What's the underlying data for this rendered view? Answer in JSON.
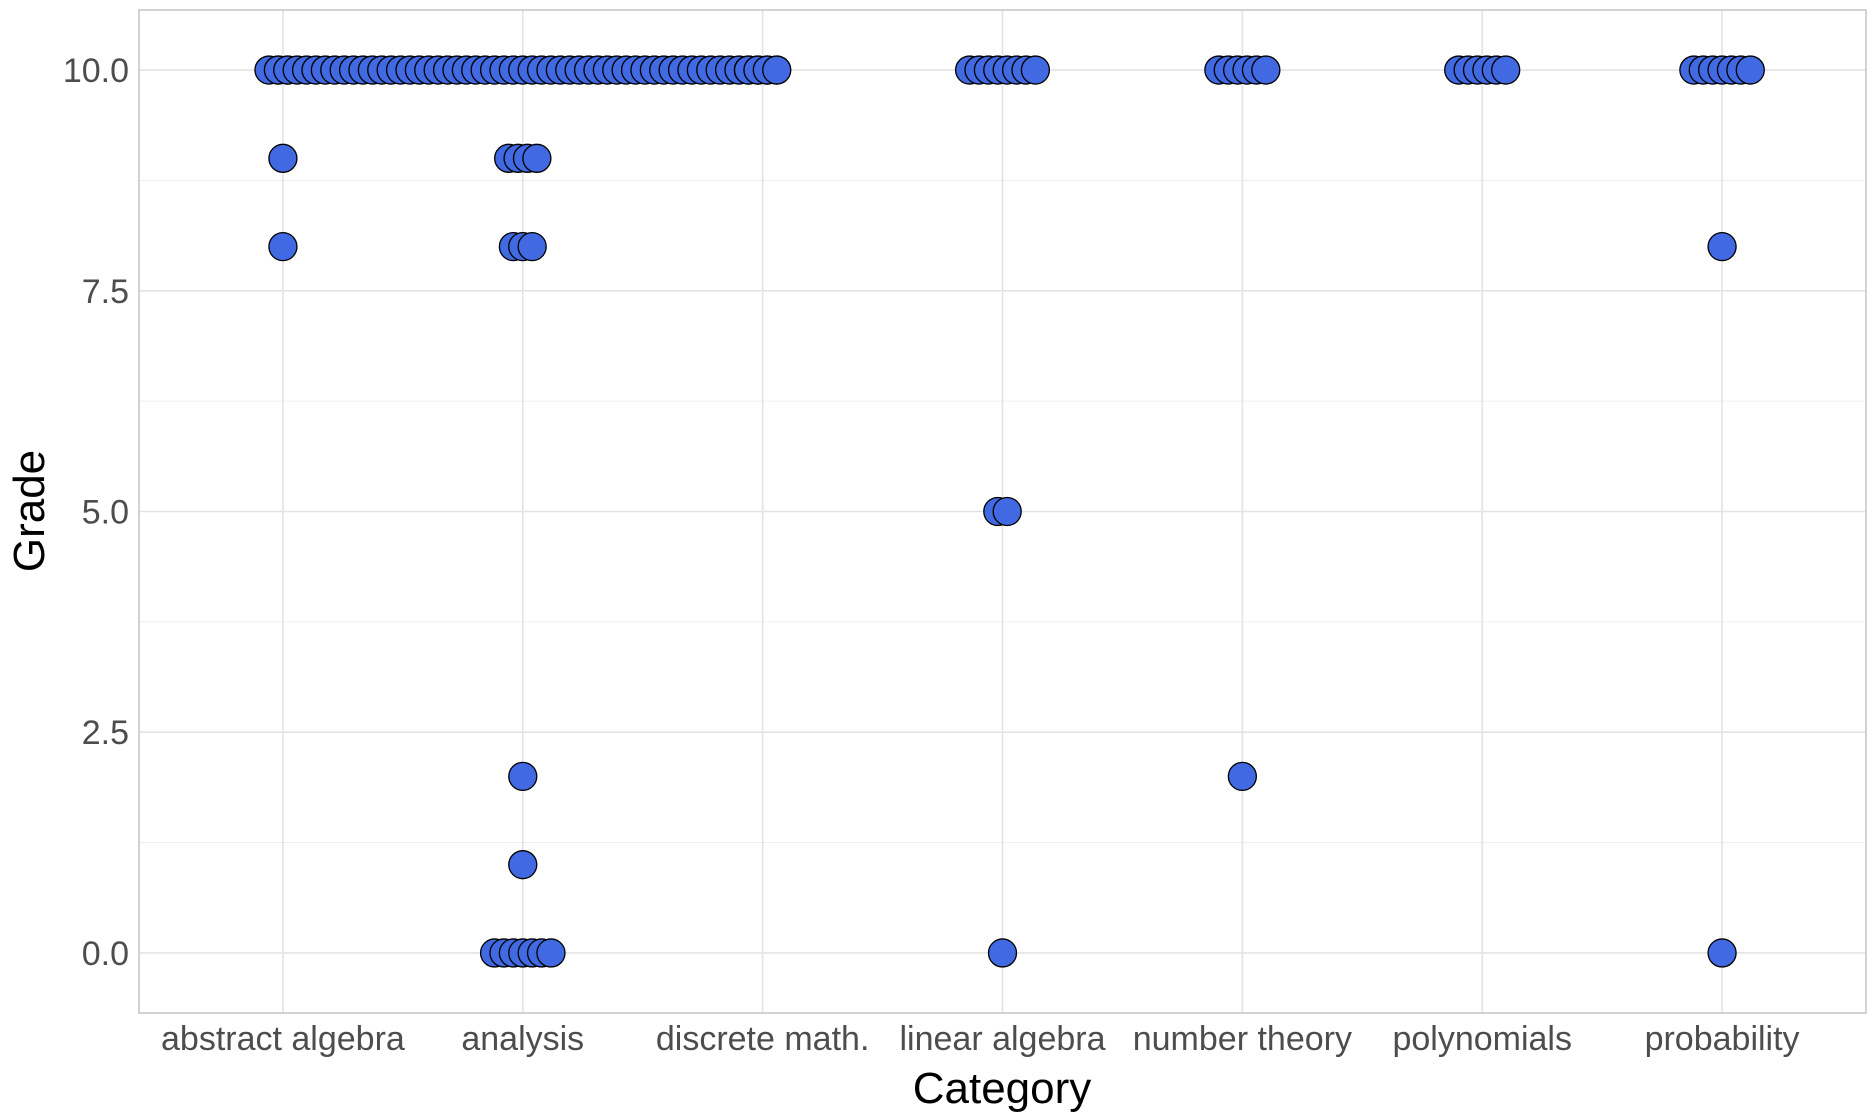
{
  "chart_data": {
    "type": "scatter",
    "title": "",
    "xlabel": "Category",
    "ylabel": "Grade",
    "categories": [
      "abstract algebra",
      "analysis",
      "discrete math.",
      "linear algebra",
      "number theory",
      "polynomials",
      "probability"
    ],
    "y_ticks": [
      "0.0",
      "2.5",
      "5.0",
      "7.5",
      "10.0"
    ],
    "ylim": [
      -0.68,
      10.68
    ],
    "grid": true,
    "legend": "none",
    "point_color": "#4169E1",
    "point_stroke": "#000000",
    "grid_color": "#e3e3e3",
    "background": "#ffffff",
    "series": [
      {
        "values": [
          {
            "category": "abstract algebra",
            "y": 10
          },
          {
            "category": "abstract algebra",
            "y": 10
          },
          {
            "category": "abstract algebra",
            "y": 9
          },
          {
            "category": "abstract algebra",
            "y": 8
          },
          {
            "category": "analysis",
            "y": 10
          },
          {
            "category": "analysis",
            "y": 10
          },
          {
            "category": "analysis",
            "y": 10
          },
          {
            "category": "analysis",
            "y": 10
          },
          {
            "category": "analysis",
            "y": 10
          },
          {
            "category": "analysis",
            "y": 10
          },
          {
            "category": "analysis",
            "y": 10
          },
          {
            "category": "analysis",
            "y": 10
          },
          {
            "category": "analysis",
            "y": 10
          },
          {
            "category": "analysis",
            "y": 10
          },
          {
            "category": "analysis",
            "y": 10
          },
          {
            "category": "analysis",
            "y": 10
          },
          {
            "category": "analysis",
            "y": 10
          },
          {
            "category": "analysis",
            "y": 10
          },
          {
            "category": "analysis",
            "y": 10
          },
          {
            "category": "analysis",
            "y": 10
          },
          {
            "category": "analysis",
            "y": 10
          },
          {
            "category": "analysis",
            "y": 10
          },
          {
            "category": "analysis",
            "y": 10
          },
          {
            "category": "analysis",
            "y": 10
          },
          {
            "category": "analysis",
            "y": 10
          },
          {
            "category": "analysis",
            "y": 10
          },
          {
            "category": "analysis",
            "y": 10
          },
          {
            "category": "analysis",
            "y": 10
          },
          {
            "category": "analysis",
            "y": 10
          },
          {
            "category": "analysis",
            "y": 10
          },
          {
            "category": "analysis",
            "y": 10
          },
          {
            "category": "analysis",
            "y": 10
          },
          {
            "category": "analysis",
            "y": 10
          },
          {
            "category": "analysis",
            "y": 10
          },
          {
            "category": "analysis",
            "y": 10
          },
          {
            "category": "analysis",
            "y": 10
          },
          {
            "category": "analysis",
            "y": 10
          },
          {
            "category": "analysis",
            "y": 10
          },
          {
            "category": "analysis",
            "y": 10
          },
          {
            "category": "analysis",
            "y": 10
          },
          {
            "category": "analysis",
            "y": 10
          },
          {
            "category": "analysis",
            "y": 10
          },
          {
            "category": "analysis",
            "y": 10
          },
          {
            "category": "analysis",
            "y": 10
          },
          {
            "category": "analysis",
            "y": 10
          },
          {
            "category": "analysis",
            "y": 10
          },
          {
            "category": "analysis",
            "y": 10
          },
          {
            "category": "analysis",
            "y": 10
          },
          {
            "category": "analysis",
            "y": 10
          },
          {
            "category": "analysis",
            "y": 10
          },
          {
            "category": "analysis",
            "y": 10
          },
          {
            "category": "analysis",
            "y": 10
          },
          {
            "category": "analysis",
            "y": 10
          },
          {
            "category": "analysis",
            "y": 10
          },
          {
            "category": "analysis",
            "y": 10
          },
          {
            "category": "analysis",
            "y": 10
          },
          {
            "category": "analysis",
            "y": 10
          },
          {
            "category": "analysis",
            "y": 10
          },
          {
            "category": "analysis",
            "y": 10
          },
          {
            "category": "analysis",
            "y": 9
          },
          {
            "category": "analysis",
            "y": 9
          },
          {
            "category": "analysis",
            "y": 9
          },
          {
            "category": "analysis",
            "y": 9
          },
          {
            "category": "analysis",
            "y": 8
          },
          {
            "category": "analysis",
            "y": 8
          },
          {
            "category": "analysis",
            "y": 8
          },
          {
            "category": "analysis",
            "y": 2
          },
          {
            "category": "analysis",
            "y": 1
          },
          {
            "category": "analysis",
            "y": 0
          },
          {
            "category": "analysis",
            "y": 0
          },
          {
            "category": "analysis",
            "y": 0
          },
          {
            "category": "analysis",
            "y": 0
          },
          {
            "category": "analysis",
            "y": 0
          },
          {
            "category": "analysis",
            "y": 0
          },
          {
            "category": "analysis",
            "y": 0
          },
          {
            "category": "discrete math.",
            "y": 10
          },
          {
            "category": "discrete math.",
            "y": 10
          },
          {
            "category": "discrete math.",
            "y": 10
          },
          {
            "category": "discrete math.",
            "y": 10
          },
          {
            "category": "linear algebra",
            "y": 10
          },
          {
            "category": "linear algebra",
            "y": 10
          },
          {
            "category": "linear algebra",
            "y": 10
          },
          {
            "category": "linear algebra",
            "y": 10
          },
          {
            "category": "linear algebra",
            "y": 10
          },
          {
            "category": "linear algebra",
            "y": 10
          },
          {
            "category": "linear algebra",
            "y": 10
          },
          {
            "category": "linear algebra",
            "y": 10
          },
          {
            "category": "linear algebra",
            "y": 5
          },
          {
            "category": "linear algebra",
            "y": 5
          },
          {
            "category": "linear algebra",
            "y": 0
          },
          {
            "category": "number theory",
            "y": 10
          },
          {
            "category": "number theory",
            "y": 10
          },
          {
            "category": "number theory",
            "y": 10
          },
          {
            "category": "number theory",
            "y": 10
          },
          {
            "category": "number theory",
            "y": 10
          },
          {
            "category": "number theory",
            "y": 10
          },
          {
            "category": "number theory",
            "y": 2
          },
          {
            "category": "polynomials",
            "y": 10
          },
          {
            "category": "polynomials",
            "y": 10
          },
          {
            "category": "polynomials",
            "y": 10
          },
          {
            "category": "polynomials",
            "y": 10
          },
          {
            "category": "polynomials",
            "y": 10
          },
          {
            "category": "polynomials",
            "y": 10
          },
          {
            "category": "probability",
            "y": 10
          },
          {
            "category": "probability",
            "y": 10
          },
          {
            "category": "probability",
            "y": 10
          },
          {
            "category": "probability",
            "y": 10
          },
          {
            "category": "probability",
            "y": 10
          },
          {
            "category": "probability",
            "y": 10
          },
          {
            "category": "probability",
            "y": 10
          },
          {
            "category": "probability",
            "y": 8
          },
          {
            "category": "probability",
            "y": 0
          }
        ]
      }
    ]
  }
}
